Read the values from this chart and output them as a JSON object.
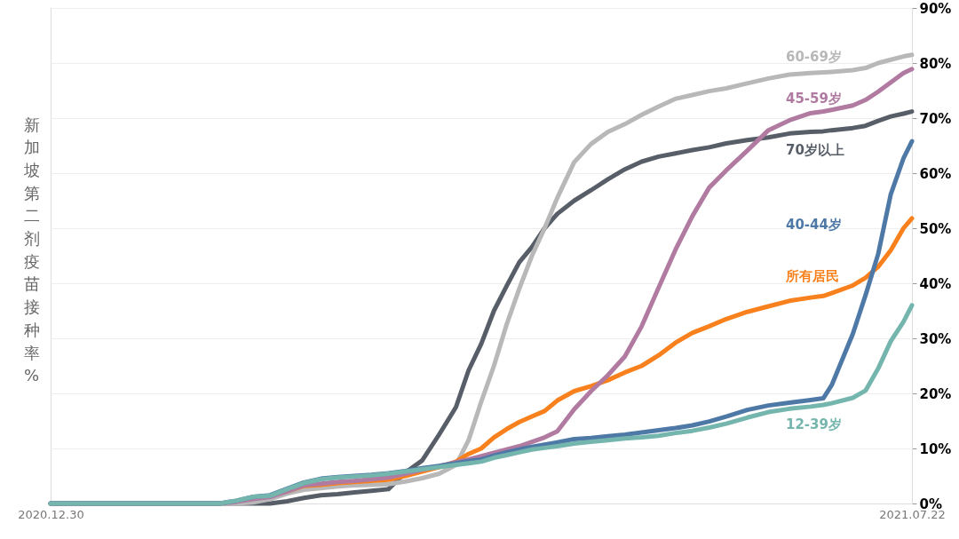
{
  "chart_data": {
    "type": "line",
    "ylabel": "新加坡第二剂疫苗接种率%",
    "x": [
      "2020-12-30",
      "2021-02-08",
      "2021-02-12",
      "2021-02-16",
      "2021-02-20",
      "2021-02-24",
      "2021-02-28",
      "2021-03-04",
      "2021-03-08",
      "2021-03-12",
      "2021-03-16",
      "2021-03-20",
      "2021-03-24",
      "2021-03-28",
      "2021-04-01",
      "2021-04-05",
      "2021-04-08",
      "2021-04-11",
      "2021-04-14",
      "2021-04-17",
      "2021-04-20",
      "2021-04-23",
      "2021-04-26",
      "2021-04-29",
      "2021-05-03",
      "2021-05-07",
      "2021-05-11",
      "2021-05-15",
      "2021-05-19",
      "2021-05-23",
      "2021-05-27",
      "2021-05-31",
      "2021-06-04",
      "2021-06-08",
      "2021-06-13",
      "2021-06-18",
      "2021-06-23",
      "2021-06-28",
      "2021-07-01",
      "2021-07-03",
      "2021-07-08",
      "2021-07-11",
      "2021-07-14",
      "2021-07-17",
      "2021-07-20",
      "2021-07-22"
    ],
    "xlim": [
      "2020-12-30",
      "2021-07-22"
    ],
    "xticks": [
      {
        "value": "2020-12-30",
        "label": "2020.12.30"
      },
      {
        "value": "2021-07-22",
        "label": "2021.07.22"
      }
    ],
    "ylim": [
      0,
      90
    ],
    "yticks": [
      {
        "value": 0,
        "label": "0%"
      },
      {
        "value": 10,
        "label": "10%"
      },
      {
        "value": 20,
        "label": "20%"
      },
      {
        "value": 30,
        "label": "30%"
      },
      {
        "value": 40,
        "label": "40%"
      },
      {
        "value": 50,
        "label": "50%"
      },
      {
        "value": 60,
        "label": "60%"
      },
      {
        "value": 70,
        "label": "70%"
      },
      {
        "value": 80,
        "label": "80%"
      },
      {
        "value": 90,
        "label": "90%"
      }
    ],
    "grid": "y",
    "line_style": "solid",
    "series": [
      {
        "name": "70岁以上",
        "color": "#585e68",
        "values": [
          0,
          0,
          0,
          0,
          0,
          0.4,
          1.0,
          1.5,
          1.7,
          2.0,
          2.3,
          2.6,
          5.6,
          7.8,
          12.5,
          17.5,
          24.2,
          29.0,
          35.0,
          39.5,
          43.8,
          46.6,
          50.0,
          52.6,
          55.0,
          56.9,
          58.9,
          60.7,
          62.1,
          63.0,
          63.6,
          64.2,
          64.7,
          65.4,
          66.0,
          66.5,
          67.2,
          67.5,
          67.6,
          67.8,
          68.2,
          68.6,
          69.5,
          70.3,
          70.8,
          71.2
        ]
      },
      {
        "name": "60-69岁",
        "color": "#b8b8b8",
        "values": [
          0,
          0,
          0,
          0.2,
          0.8,
          1.8,
          2.5,
          2.8,
          3.1,
          3.3,
          3.4,
          3.5,
          4.0,
          4.6,
          5.4,
          7.0,
          11.5,
          18.5,
          25.0,
          32.5,
          39.0,
          45.0,
          50.0,
          55.5,
          62.0,
          65.3,
          67.5,
          68.9,
          70.6,
          72.1,
          73.5,
          74.2,
          74.9,
          75.4,
          76.3,
          77.2,
          77.9,
          78.2,
          78.3,
          78.4,
          78.7,
          79.1,
          80.0,
          80.6,
          81.2,
          81.5
        ]
      },
      {
        "name": "所有居民",
        "color": "#f8801d",
        "values": [
          null,
          null,
          null,
          null,
          null,
          2.2,
          3.2,
          3.4,
          3.7,
          3.9,
          4.1,
          4.3,
          5.0,
          5.8,
          6.6,
          7.6,
          9.0,
          10.0,
          12.0,
          13.5,
          14.8,
          15.8,
          16.8,
          18.7,
          20.4,
          21.3,
          22.4,
          23.8,
          25.0,
          26.9,
          29.2,
          31.0,
          32.2,
          33.5,
          34.8,
          35.8,
          36.8,
          37.4,
          37.7,
          38.2,
          39.6,
          41.0,
          43.0,
          46.0,
          50.0,
          51.8
        ]
      },
      {
        "name": "45-59岁",
        "color": "#b07aa1",
        "values": [
          0,
          0,
          0.3,
          0.8,
          1.2,
          2.2,
          3.3,
          3.6,
          3.9,
          4.1,
          4.4,
          4.7,
          5.4,
          6.1,
          6.8,
          7.5,
          8.0,
          8.6,
          9.2,
          9.8,
          10.4,
          11.2,
          12.0,
          13.1,
          17.1,
          20.4,
          23.3,
          26.7,
          32.2,
          39.2,
          46.1,
          52.2,
          57.4,
          60.5,
          64.1,
          67.8,
          69.6,
          70.9,
          71.2,
          71.5,
          72.3,
          73.3,
          74.8,
          76.5,
          78.2,
          78.9
        ]
      },
      {
        "name": "40-44岁",
        "color": "#4e79a7",
        "values": [
          0,
          0,
          0.5,
          1.2,
          1.5,
          2.7,
          3.8,
          4.5,
          4.8,
          5.0,
          5.2,
          5.5,
          5.9,
          6.4,
          6.8,
          7.3,
          7.7,
          8.0,
          8.7,
          9.3,
          9.8,
          10.3,
          10.7,
          11.1,
          11.7,
          11.9,
          12.2,
          12.5,
          12.9,
          13.3,
          13.7,
          14.2,
          14.9,
          15.8,
          17.0,
          17.8,
          18.3,
          18.8,
          19.1,
          21.5,
          30.8,
          37.8,
          45.3,
          56.2,
          62.7,
          65.8
        ]
      },
      {
        "name": "12-39岁",
        "color": "#74b5ad",
        "values": [
          0,
          0,
          0.5,
          1.2,
          1.4,
          2.6,
          3.7,
          4.4,
          4.7,
          4.9,
          5.1,
          5.4,
          5.8,
          6.2,
          6.6,
          7.0,
          7.3,
          7.6,
          8.3,
          8.8,
          9.3,
          9.8,
          10.1,
          10.4,
          10.9,
          11.2,
          11.5,
          11.8,
          12.0,
          12.3,
          12.8,
          13.2,
          13.8,
          14.5,
          15.6,
          16.6,
          17.2,
          17.6,
          17.9,
          18.2,
          19.2,
          20.5,
          24.5,
          29.5,
          33.0,
          36.0
        ]
      }
    ]
  }
}
